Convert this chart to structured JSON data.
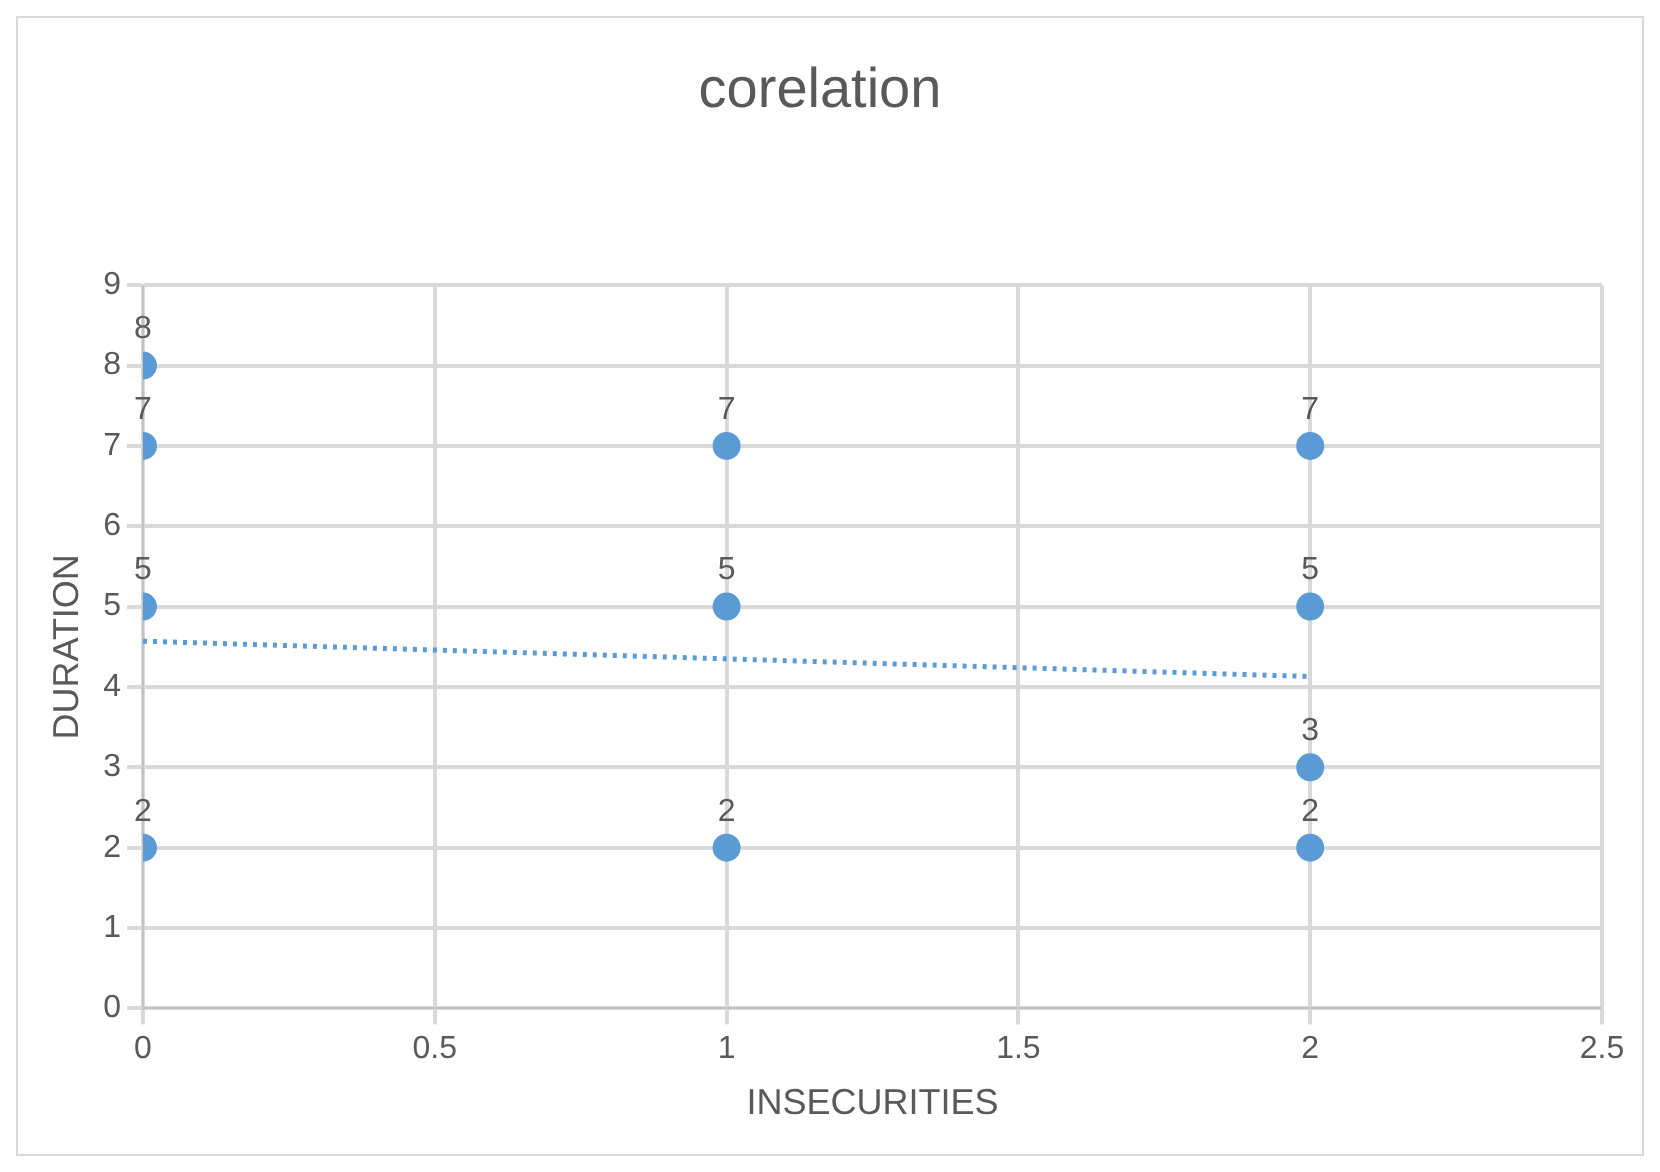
{
  "chart_data": {
    "type": "scatter",
    "title": "corelation",
    "xlabel": "INSECURITIES",
    "ylabel": "DURATION",
    "xlim": [
      0,
      2.5
    ],
    "xticks": [
      0,
      0.5,
      1,
      1.5,
      2,
      2.5
    ],
    "ylim": [
      0,
      9
    ],
    "yticks": [
      0,
      1,
      2,
      3,
      4,
      5,
      6,
      7,
      8,
      9
    ],
    "grid": true,
    "marker": "circle",
    "series": [
      {
        "type": "scatter",
        "color": "#5b9bd5",
        "x": [
          0,
          0,
          0,
          0,
          1,
          1,
          1,
          2,
          2,
          2,
          2
        ],
        "values": [
          8,
          7,
          5,
          2,
          7,
          5,
          2,
          7,
          5,
          3,
          2
        ],
        "value_labels": [
          "8",
          "7",
          "5",
          "2",
          "7",
          "5",
          "2",
          "7",
          "5",
          "3",
          "2"
        ]
      },
      {
        "type": "line",
        "color": "#5b9bd5",
        "line_style": "dotted",
        "marker": "none",
        "x": [
          0,
          2
        ],
        "values": [
          4.57,
          4.13
        ]
      }
    ]
  }
}
